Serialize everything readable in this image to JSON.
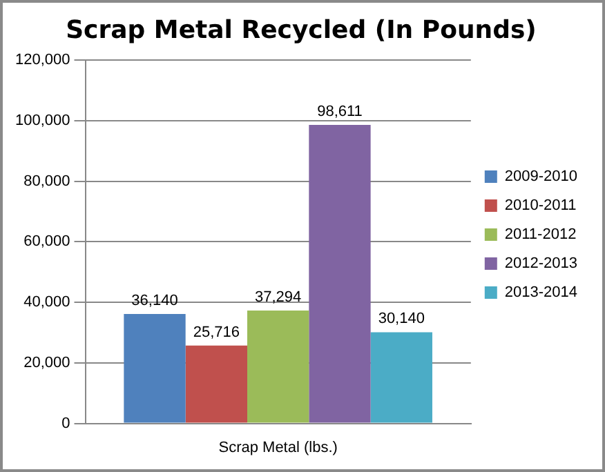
{
  "chart_data": {
    "type": "bar",
    "title": "Scrap Metal Recycled (In Pounds)",
    "categories": [
      "Scrap Metal (lbs.)"
    ],
    "series": [
      {
        "name": "2009-2010",
        "color": "#4f81bd",
        "values": [
          36140
        ],
        "value_labels": [
          "36,140"
        ]
      },
      {
        "name": "2010-2011",
        "color": "#c0504d",
        "values": [
          25716
        ],
        "value_labels": [
          "25,716"
        ]
      },
      {
        "name": "2011-2012",
        "color": "#9bbb59",
        "values": [
          37294
        ],
        "value_labels": [
          "37,294"
        ]
      },
      {
        "name": "2012-2013",
        "color": "#8064a2",
        "values": [
          98611
        ],
        "value_labels": [
          "98,611"
        ]
      },
      {
        "name": "2013-2014",
        "color": "#4bacc6",
        "values": [
          30140
        ],
        "value_labels": [
          "30,140"
        ]
      }
    ],
    "ylim": [
      0,
      120000
    ],
    "yticks": [
      0,
      {
        "value": 20000,
        "label": "20,000"
      },
      {
        "value": 40000,
        "label": "40,000"
      },
      {
        "value": 60000,
        "label": "60,000"
      },
      {
        "value": 80000,
        "label": "80,000"
      },
      {
        "value": 100000,
        "label": "100,000"
      },
      {
        "value": 120000,
        "label": "120,000"
      }
    ],
    "grid": "y",
    "legend": "right"
  }
}
